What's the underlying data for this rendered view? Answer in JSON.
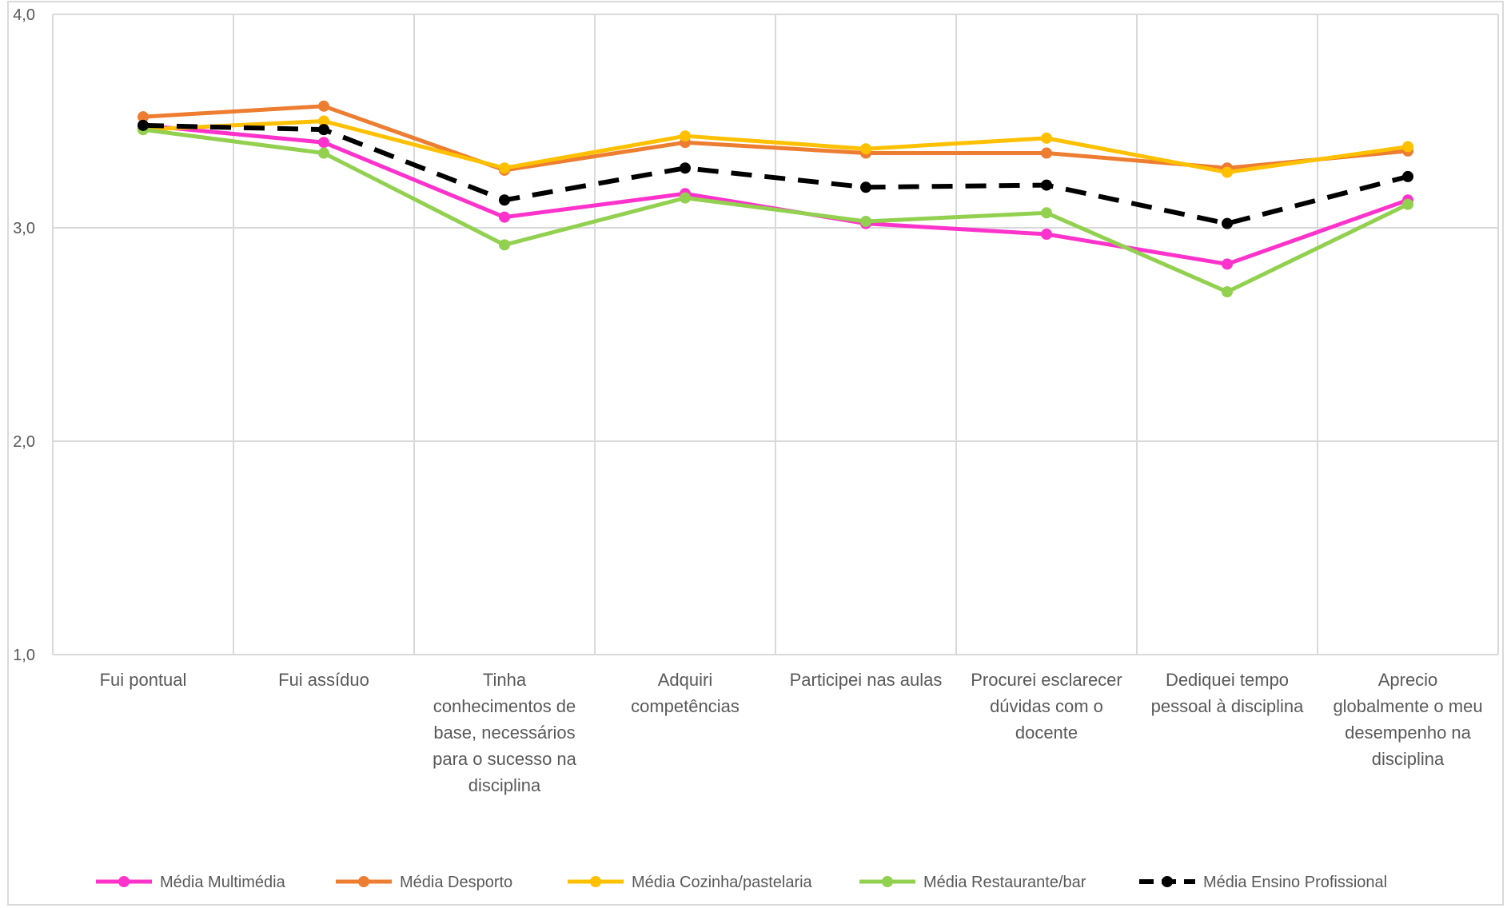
{
  "chart_data": {
    "type": "line",
    "categories": [
      "Fui pontual",
      "Fui assíduo",
      "Tinha conhecimentos de base, necessários para o sucesso na disciplina",
      "Adquiri competências",
      "Participei nas aulas",
      "Procurei esclarecer dúvidas com o docente",
      "Dediquei tempo pessoal à disciplina",
      "Aprecio globalmente o meu desempenho na disciplina"
    ],
    "category_lines": [
      [
        "Fui pontual"
      ],
      [
        "Fui assíduo"
      ],
      [
        "Tinha",
        "conhecimentos de",
        "base, necessários",
        "para o sucesso na",
        "disciplina"
      ],
      [
        "Adquiri",
        "competências"
      ],
      [
        "Participei nas aulas"
      ],
      [
        "Procurei esclarecer",
        "dúvidas com o",
        "docente"
      ],
      [
        "Dediquei tempo",
        "pessoal à disciplina"
      ],
      [
        "Aprecio",
        "globalmente o meu",
        "desempenho na",
        "disciplina"
      ]
    ],
    "y_ticks": [
      "1,0",
      "2,0",
      "3,0",
      "4,0"
    ],
    "ylim": [
      1.0,
      4.0
    ],
    "grid": true,
    "legend_position": "bottom",
    "series": [
      {
        "name": "Média Multimédia",
        "color": "#ff33cc",
        "dashed": false,
        "values": [
          3.48,
          3.4,
          3.05,
          3.16,
          3.02,
          2.97,
          2.83,
          3.13
        ]
      },
      {
        "name": "Média Desporto",
        "color": "#ed7d31",
        "dashed": false,
        "values": [
          3.52,
          3.57,
          3.27,
          3.4,
          3.35,
          3.35,
          3.28,
          3.36
        ]
      },
      {
        "name": "Média Cozinha/pastelaria",
        "color": "#ffc000",
        "dashed": false,
        "values": [
          3.46,
          3.5,
          3.28,
          3.43,
          3.37,
          3.42,
          3.26,
          3.38
        ]
      },
      {
        "name": "Média Restaurante/bar",
        "color": "#92d050",
        "dashed": false,
        "values": [
          3.46,
          3.35,
          2.92,
          3.14,
          3.03,
          3.07,
          2.7,
          3.11
        ]
      },
      {
        "name": "Média Ensino Profissional",
        "color": "#000000",
        "dashed": true,
        "values": [
          3.48,
          3.46,
          3.13,
          3.28,
          3.19,
          3.2,
          3.02,
          3.24
        ]
      }
    ]
  }
}
